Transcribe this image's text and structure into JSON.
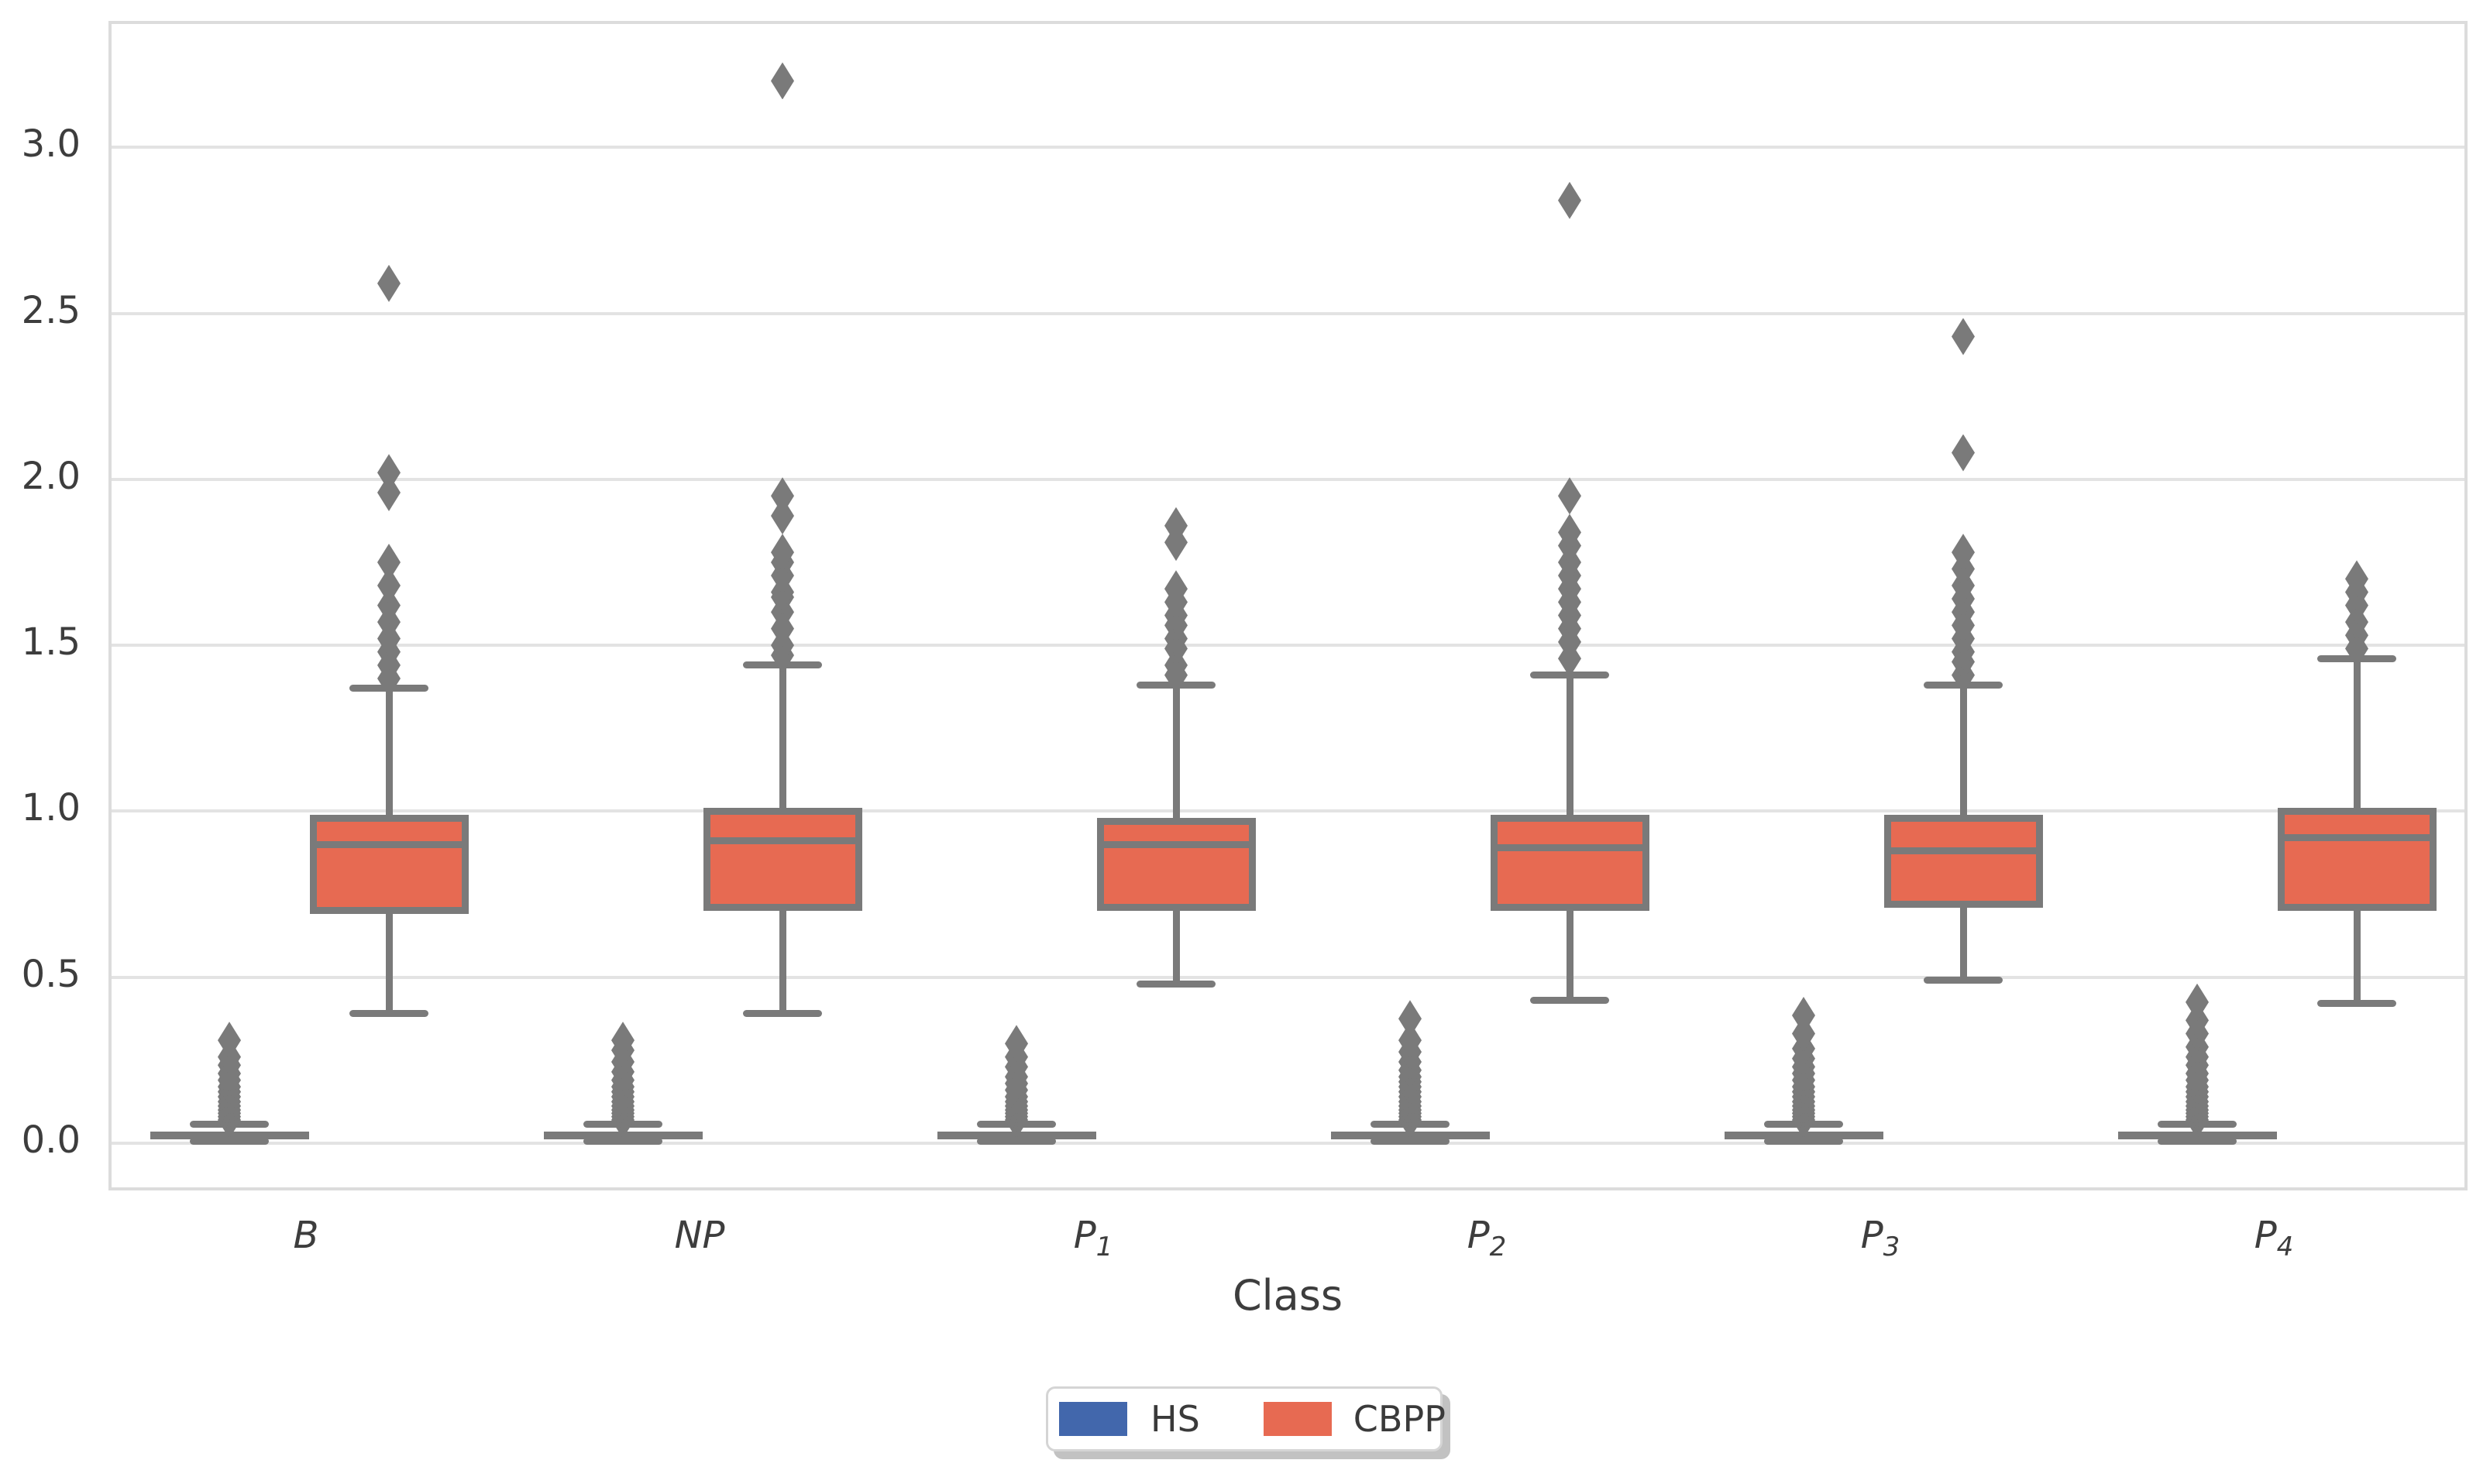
{
  "chart_data": {
    "type": "grouped_boxplot",
    "title": "",
    "xlabel": "Class",
    "ylabel": "",
    "categories": [
      {
        "base": "B",
        "sub": ""
      },
      {
        "base": "NP",
        "sub": ""
      },
      {
        "base": "P",
        "sub": "1"
      },
      {
        "base": "P",
        "sub": "2"
      },
      {
        "base": "P",
        "sub": "3"
      },
      {
        "base": "P",
        "sub": "4"
      }
    ],
    "yticks": [
      "0.0",
      "0.5",
      "1.0",
      "1.5",
      "2.0",
      "2.5",
      "3.0"
    ],
    "ylim": [
      -0.15,
      3.38
    ],
    "grid": true,
    "legend": {
      "position": "bottom-center",
      "labels": [
        "HS",
        "CBPP"
      ]
    },
    "series": [
      {
        "name": "HS",
        "fill_color": "#4267ac",
        "edge_color": "#7a7a7a",
        "boxes": [
          {
            "category": "B",
            "whislo": 0.005,
            "q1": 0.012,
            "med": 0.025,
            "q3": 0.036,
            "whishi": 0.056,
            "fliers": [
              0.07,
              0.08,
              0.09,
              0.1,
              0.112,
              0.125,
              0.14,
              0.155,
              0.17,
              0.19,
              0.21,
              0.235,
              0.26,
              0.31
            ]
          },
          {
            "category": "NP",
            "whislo": 0.005,
            "q1": 0.012,
            "med": 0.025,
            "q3": 0.036,
            "whishi": 0.056,
            "fliers": [
              0.07,
              0.08,
              0.09,
              0.1,
              0.112,
              0.125,
              0.14,
              0.155,
              0.17,
              0.19,
              0.215,
              0.245,
              0.28,
              0.31
            ]
          },
          {
            "category": "P1",
            "whislo": 0.005,
            "q1": 0.012,
            "med": 0.025,
            "q3": 0.036,
            "whishi": 0.056,
            "fliers": [
              0.07,
              0.08,
              0.09,
              0.1,
              0.112,
              0.125,
              0.14,
              0.16,
              0.18,
              0.2,
              0.23,
              0.26,
              0.3
            ]
          },
          {
            "category": "P2",
            "whislo": 0.005,
            "q1": 0.012,
            "med": 0.025,
            "q3": 0.036,
            "whishi": 0.056,
            "fliers": [
              0.07,
              0.08,
              0.09,
              0.1,
              0.112,
              0.125,
              0.14,
              0.155,
              0.17,
              0.185,
              0.2,
              0.22,
              0.245,
              0.275,
              0.31,
              0.375
            ]
          },
          {
            "category": "P3",
            "whislo": 0.005,
            "q1": 0.012,
            "med": 0.025,
            "q3": 0.036,
            "whishi": 0.056,
            "fliers": [
              0.07,
              0.08,
              0.09,
              0.1,
              0.112,
              0.125,
              0.14,
              0.155,
              0.17,
              0.19,
              0.21,
              0.23,
              0.255,
              0.285,
              0.33,
              0.385
            ]
          },
          {
            "category": "P4",
            "whislo": 0.005,
            "q1": 0.012,
            "med": 0.025,
            "q3": 0.036,
            "whishi": 0.056,
            "fliers": [
              0.07,
              0.08,
              0.09,
              0.1,
              0.112,
              0.125,
              0.14,
              0.155,
              0.17,
              0.19,
              0.21,
              0.235,
              0.26,
              0.29,
              0.33,
              0.37,
              0.425
            ]
          }
        ]
      },
      {
        "name": "CBPP",
        "fill_color": "#e76a52",
        "edge_color": "#7a7a7a",
        "boxes": [
          {
            "category": "B",
            "whislo": 0.39,
            "q1": 0.69,
            "med": 0.9,
            "q3": 0.99,
            "whishi": 1.37,
            "fliers": [
              1.4,
              1.44,
              1.48,
              1.52,
              1.57,
              1.62,
              1.68,
              1.75,
              1.96,
              2.02,
              2.59
            ]
          },
          {
            "category": "NP",
            "whislo": 0.39,
            "q1": 0.7,
            "med": 0.91,
            "q3": 1.01,
            "whishi": 1.44,
            "fliers": [
              1.47,
              1.5,
              1.55,
              1.6,
              1.645,
              1.66,
              1.71,
              1.75,
              1.78,
              1.89,
              1.95,
              3.2
            ]
          },
          {
            "category": "P1",
            "whislo": 0.48,
            "q1": 0.7,
            "med": 0.9,
            "q3": 0.98,
            "whishi": 1.38,
            "fliers": [
              1.41,
              1.44,
              1.49,
              1.52,
              1.56,
              1.59,
              1.63,
              1.67,
              1.81,
              1.86
            ]
          },
          {
            "category": "P2",
            "whislo": 0.43,
            "q1": 0.7,
            "med": 0.89,
            "q3": 0.99,
            "whishi": 1.41,
            "fliers": [
              1.46,
              1.51,
              1.55,
              1.59,
              1.63,
              1.67,
              1.71,
              1.75,
              1.8,
              1.84,
              1.95,
              2.84
            ]
          },
          {
            "category": "P3",
            "whislo": 0.49,
            "q1": 0.71,
            "med": 0.88,
            "q3": 0.99,
            "whishi": 1.38,
            "fliers": [
              1.41,
              1.45,
              1.48,
              1.52,
              1.56,
              1.6,
              1.64,
              1.68,
              1.73,
              1.78,
              2.08,
              2.43
            ]
          },
          {
            "category": "P4",
            "whislo": 0.42,
            "q1": 0.7,
            "med": 0.92,
            "q3": 1.01,
            "whishi": 1.46,
            "fliers": [
              1.49,
              1.53,
              1.57,
              1.62,
              1.66,
              1.7
            ]
          }
        ]
      }
    ]
  },
  "style": {
    "grid_color": "#e3e3e3",
    "spine_color": "#dcdcdc",
    "edge_color": "#7a7a7a",
    "flier_color": "#7a7a7a",
    "text_color": "#3d3d3d",
    "hs_blue": "#4267ac",
    "cbpp_orange": "#e76a52",
    "legend_shadow_color": "#c2c2c2"
  }
}
